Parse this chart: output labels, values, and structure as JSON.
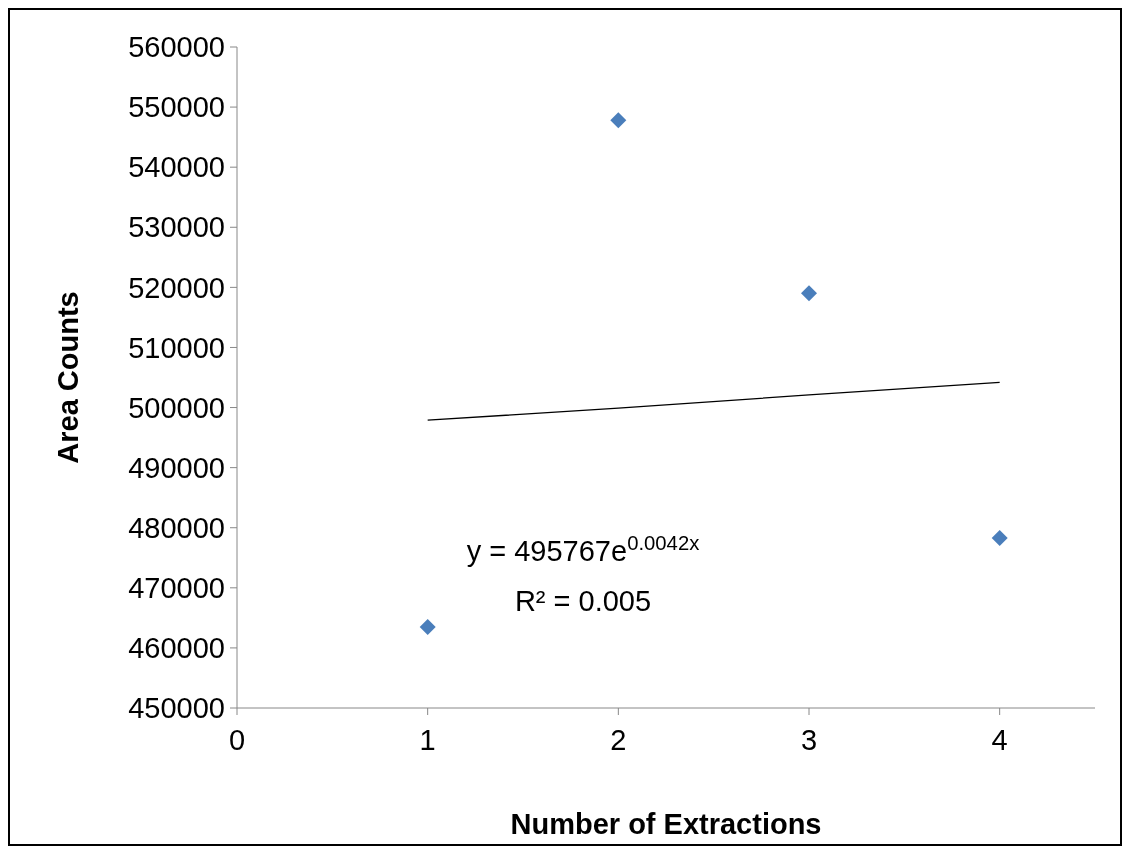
{
  "chart_data": {
    "type": "scatter",
    "xlabel": "Number of Extractions",
    "ylabel": "Area Counts",
    "xlim": [
      0,
      4.5
    ],
    "xticks": [
      0,
      1,
      2,
      3,
      4
    ],
    "ylim": [
      450000,
      560000
    ],
    "yticks": [
      450000,
      460000,
      470000,
      480000,
      490000,
      500000,
      510000,
      520000,
      530000,
      540000,
      550000,
      560000
    ],
    "series": [
      {
        "color": "#4a7ebb",
        "x": [
          1,
          2,
          3,
          4
        ],
        "values": [
          463500,
          547800,
          519000,
          478300
        ],
        "marker": "diamond"
      },
      {
        "type": "line",
        "color": "#000000",
        "x": [
          1,
          2,
          3,
          4
        ],
        "values": [
          497900,
          499900,
          502100,
          504200
        ],
        "marker": "none",
        "line_style": "solid"
      }
    ],
    "annotations": [
      "y = 495767e$^{0.0042x}$",
      "R² = 0.005"
    ],
    "grid": false
  }
}
